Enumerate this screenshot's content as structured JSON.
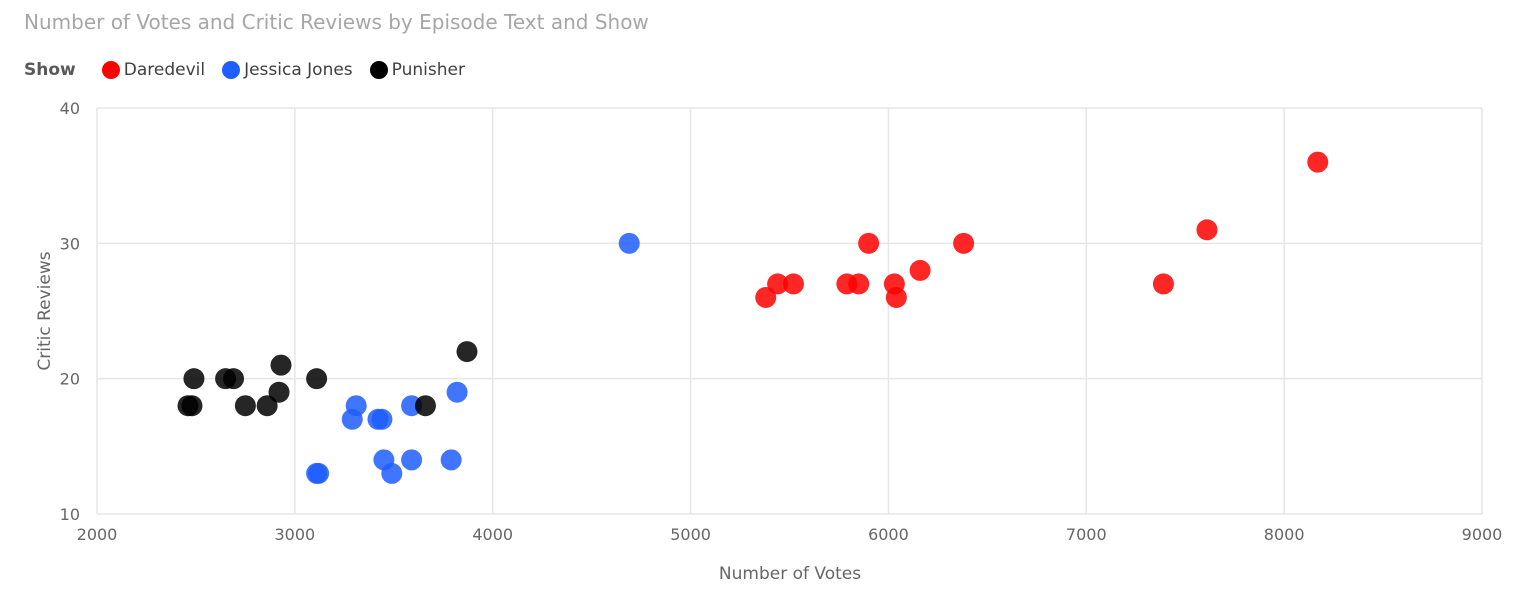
{
  "chart_data": {
    "type": "scatter",
    "title": "Number of Votes and Critic Reviews by Episode Text and Show",
    "legend_title": "Show",
    "xlabel": "Number of Votes",
    "ylabel": "Critic Reviews",
    "xlim": [
      2000,
      9000
    ],
    "ylim": [
      10,
      40
    ],
    "xticks": [
      2000,
      3000,
      4000,
      5000,
      6000,
      7000,
      8000,
      9000
    ],
    "yticks": [
      10,
      20,
      30,
      40
    ],
    "grid": true,
    "legend_position": "top-left",
    "series": [
      {
        "name": "Daredevil",
        "color": "#ff0000",
        "points": [
          [
            5380,
            26
          ],
          [
            5440,
            27
          ],
          [
            5520,
            27
          ],
          [
            5790,
            27
          ],
          [
            5850,
            27
          ],
          [
            5900,
            30
          ],
          [
            6030,
            27
          ],
          [
            6040,
            26
          ],
          [
            6160,
            28
          ],
          [
            6380,
            30
          ],
          [
            7390,
            27
          ],
          [
            7610,
            31
          ],
          [
            8170,
            36
          ]
        ]
      },
      {
        "name": "Jessica Jones",
        "color": "#1f5eff",
        "points": [
          [
            4690,
            30
          ],
          [
            3110,
            13
          ],
          [
            3120,
            13
          ],
          [
            3290,
            17
          ],
          [
            3310,
            18
          ],
          [
            3420,
            17
          ],
          [
            3440,
            17
          ],
          [
            3450,
            14
          ],
          [
            3490,
            13
          ],
          [
            3590,
            14
          ],
          [
            3590,
            18
          ],
          [
            3790,
            14
          ],
          [
            3820,
            19
          ]
        ]
      },
      {
        "name": "Punisher",
        "color": "#000000",
        "points": [
          [
            2460,
            18
          ],
          [
            2480,
            18
          ],
          [
            2490,
            20
          ],
          [
            2650,
            20
          ],
          [
            2690,
            20
          ],
          [
            2750,
            18
          ],
          [
            2860,
            18
          ],
          [
            2920,
            19
          ],
          [
            2930,
            21
          ],
          [
            3110,
            20
          ],
          [
            3660,
            18
          ],
          [
            3870,
            22
          ]
        ]
      }
    ]
  }
}
